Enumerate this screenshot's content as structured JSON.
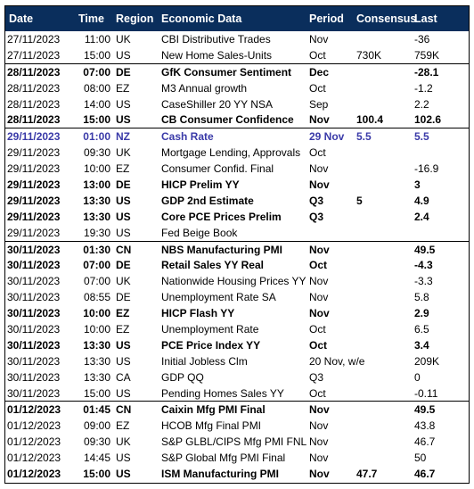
{
  "table": {
    "headers": {
      "date": "Date",
      "time": "Time",
      "region": "Region",
      "economic_data": "Economic Data",
      "period": "Period",
      "consensus": "Consensus",
      "last": "Last"
    },
    "colors": {
      "header_bg": "#0a2e5c",
      "header_text": "#ffffff",
      "highlight_text": "#3a3aa8",
      "separator": "#000000"
    },
    "rows": [
      {
        "date": "27/11/2023",
        "time": "11:00",
        "region": "UK",
        "event": "CBI Distributive Trades",
        "period": "Nov",
        "consensus": "",
        "last": "-36",
        "bold": false,
        "group_start": false,
        "highlight": false
      },
      {
        "date": "27/11/2023",
        "time": "15:00",
        "region": "US",
        "event": "New Home Sales-Units",
        "period": "Oct",
        "consensus": "730K",
        "last": "759K",
        "bold": false,
        "group_start": false,
        "highlight": false
      },
      {
        "date": "28/11/2023",
        "time": "07:00",
        "region": "DE",
        "event": "GfK Consumer Sentiment",
        "period": "Dec",
        "consensus": "",
        "last": "-28.1",
        "bold": true,
        "group_start": true,
        "highlight": false
      },
      {
        "date": "28/11/2023",
        "time": "08:00",
        "region": "EZ",
        "event": "M3 Annual growth",
        "period": "Oct",
        "consensus": "",
        "last": "-1.2",
        "bold": false,
        "group_start": false,
        "highlight": false
      },
      {
        "date": "28/11/2023",
        "time": "14:00",
        "region": "US",
        "event": "CaseShiller 20 YY NSA",
        "period": "Sep",
        "consensus": "",
        "last": "2.2",
        "bold": false,
        "group_start": false,
        "highlight": false
      },
      {
        "date": "28/11/2023",
        "time": "15:00",
        "region": "US",
        "event": "CB Consumer Confidence",
        "period": "Nov",
        "consensus": "100.4",
        "last": "102.6",
        "bold": true,
        "group_start": false,
        "highlight": false
      },
      {
        "date": "29/11/2023",
        "time": "01:00",
        "region": "NZ",
        "event": "Cash Rate",
        "period": "29 Nov",
        "consensus": "5.5",
        "last": "5.5",
        "bold": true,
        "group_start": true,
        "highlight": true
      },
      {
        "date": "29/11/2023",
        "time": "09:30",
        "region": "UK",
        "event": "Mortgage Lending, Approvals",
        "period": "Oct",
        "consensus": "",
        "last": "",
        "bold": false,
        "group_start": false,
        "highlight": false
      },
      {
        "date": "29/11/2023",
        "time": "10:00",
        "region": "EZ",
        "event": "Consumer Confid. Final",
        "period": "Nov",
        "consensus": "",
        "last": "-16.9",
        "bold": false,
        "group_start": false,
        "highlight": false
      },
      {
        "date": "29/11/2023",
        "time": "13:00",
        "region": "DE",
        "event": "HICP Prelim YY",
        "period": "Nov",
        "consensus": "",
        "last": "3",
        "bold": true,
        "group_start": false,
        "highlight": false
      },
      {
        "date": "29/11/2023",
        "time": "13:30",
        "region": "US",
        "event": "GDP 2nd Estimate",
        "period": "Q3",
        "consensus": "5",
        "last": "4.9",
        "bold": true,
        "group_start": false,
        "highlight": false
      },
      {
        "date": "29/11/2023",
        "time": "13:30",
        "region": "US",
        "event": "Core PCE Prices Prelim",
        "period": "Q3",
        "consensus": "",
        "last": "2.4",
        "bold": true,
        "group_start": false,
        "highlight": false
      },
      {
        "date": "29/11/2023",
        "time": "19:30",
        "region": "US",
        "event": "Fed Beige Book",
        "period": "",
        "consensus": "",
        "last": "",
        "bold": false,
        "group_start": false,
        "highlight": false
      },
      {
        "date": "30/11/2023",
        "time": "01:30",
        "region": "CN",
        "event": "NBS Manufacturing PMI",
        "period": "Nov",
        "consensus": "",
        "last": "49.5",
        "bold": true,
        "group_start": true,
        "highlight": false
      },
      {
        "date": "30/11/2023",
        "time": "07:00",
        "region": "DE",
        "event": "Retail Sales YY Real",
        "period": "Oct",
        "consensus": "",
        "last": "-4.3",
        "bold": true,
        "group_start": false,
        "highlight": false
      },
      {
        "date": "30/11/2023",
        "time": "07:00",
        "region": "UK",
        "event": "Nationwide Housing Prices YY",
        "period": "Nov",
        "consensus": "",
        "last": "-3.3",
        "bold": false,
        "group_start": false,
        "highlight": false
      },
      {
        "date": "30/11/2023",
        "time": "08:55",
        "region": "DE",
        "event": "Unemployment Rate SA",
        "period": "Nov",
        "consensus": "",
        "last": "5.8",
        "bold": false,
        "group_start": false,
        "highlight": false
      },
      {
        "date": "30/11/2023",
        "time": "10:00",
        "region": "EZ",
        "event": "HICP Flash YY",
        "period": "Nov",
        "consensus": "",
        "last": "2.9",
        "bold": true,
        "group_start": false,
        "highlight": false
      },
      {
        "date": "30/11/2023",
        "time": "10:00",
        "region": "EZ",
        "event": "Unemployment Rate",
        "period": "Oct",
        "consensus": "",
        "last": "6.5",
        "bold": false,
        "group_start": false,
        "highlight": false
      },
      {
        "date": "30/11/2023",
        "time": "13:30",
        "region": "US",
        "event": "PCE Price Index YY",
        "period": "Oct",
        "consensus": "",
        "last": "3.4",
        "bold": true,
        "group_start": false,
        "highlight": false
      },
      {
        "date": "30/11/2023",
        "time": "13:30",
        "region": "US",
        "event": "Initial Jobless Clm",
        "period": "20 Nov, w/e",
        "consensus": "",
        "last": "209K",
        "bold": false,
        "group_start": false,
        "highlight": false
      },
      {
        "date": "30/11/2023",
        "time": "13:30",
        "region": "CA",
        "event": "GDP QQ",
        "period": "Q3",
        "consensus": "",
        "last": "0",
        "bold": false,
        "group_start": false,
        "highlight": false
      },
      {
        "date": "30/11/2023",
        "time": "15:00",
        "region": "US",
        "event": "Pending Homes Sales YY",
        "period": "Oct",
        "consensus": "",
        "last": "-0.11",
        "bold": false,
        "group_start": false,
        "highlight": false
      },
      {
        "date": "01/12/2023",
        "time": "01:45",
        "region": "CN",
        "event": "Caixin Mfg PMI Final",
        "period": "Nov",
        "consensus": "",
        "last": "49.5",
        "bold": true,
        "group_start": true,
        "highlight": false
      },
      {
        "date": "01/12/2023",
        "time": "09:00",
        "region": "EZ",
        "event": "HCOB Mfg Final PMI",
        "period": "Nov",
        "consensus": "",
        "last": "43.8",
        "bold": false,
        "group_start": false,
        "highlight": false
      },
      {
        "date": "01/12/2023",
        "time": "09:30",
        "region": "UK",
        "event": "S&P GLBL/CIPS Mfg PMI FNL",
        "period": "Nov",
        "consensus": "",
        "last": "46.7",
        "bold": false,
        "group_start": false,
        "highlight": false
      },
      {
        "date": "01/12/2023",
        "time": "14:45",
        "region": "US",
        "event": "S&P Global Mfg PMI Final",
        "period": "Nov",
        "consensus": "",
        "last": "50",
        "bold": false,
        "group_start": false,
        "highlight": false
      },
      {
        "date": "01/12/2023",
        "time": "15:00",
        "region": "US",
        "event": "ISM Manufacturing PMI",
        "period": "Nov",
        "consensus": "47.7",
        "last": "46.7",
        "bold": true,
        "group_start": false,
        "highlight": false
      }
    ]
  }
}
